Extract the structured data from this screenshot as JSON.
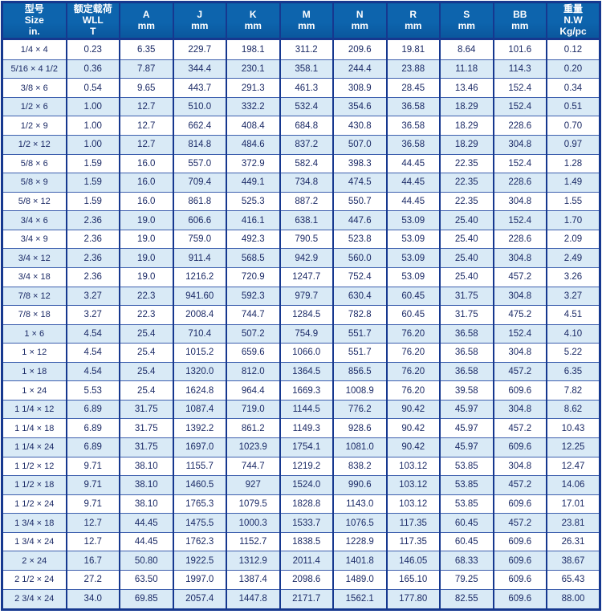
{
  "colors": {
    "header-bg": "#0d64ad",
    "header-bg-dark": "#0a569c",
    "header-text": "#ffffff",
    "row-bg": "#ffffff",
    "row-alt-bg": "#d9eaf6",
    "border-strong": "#16388f",
    "border-light": "#3d5fae",
    "cell-text": "#1b2a66",
    "page-bg": "#ffffff"
  },
  "chart_data": {
    "type": "table",
    "title": "Shackle / sling specification table",
    "columns": [
      "型号\nSize\nin.",
      "额定载荷\nWLL\nT",
      "A\nmm",
      "J\nmm",
      "K\nmm",
      "M\nmm",
      "N\nmm",
      "R\nmm",
      "S\nmm",
      "BB\nmm",
      "重量\nN.W\nKg/pc"
    ],
    "rows": [
      [
        "1/4 × 4",
        "0.23",
        "6.35",
        "229.7",
        "198.1",
        "311.2",
        "209.6",
        "19.81",
        "8.64",
        "101.6",
        "0.12"
      ],
      [
        "5/16 × 4 1/2",
        "0.36",
        "7.87",
        "344.4",
        "230.1",
        "358.1",
        "244.4",
        "23.88",
        "11.18",
        "114.3",
        "0.20"
      ],
      [
        "3/8 × 6",
        "0.54",
        "9.65",
        "443.7",
        "291.3",
        "461.3",
        "308.9",
        "28.45",
        "13.46",
        "152.4",
        "0.34"
      ],
      [
        "1/2 × 6",
        "1.00",
        "12.7",
        "510.0",
        "332.2",
        "532.4",
        "354.6",
        "36.58",
        "18.29",
        "152.4",
        "0.51"
      ],
      [
        "1/2 × 9",
        "1.00",
        "12.7",
        "662.4",
        "408.4",
        "684.8",
        "430.8",
        "36.58",
        "18.29",
        "228.6",
        "0.70"
      ],
      [
        "1/2 × 12",
        "1.00",
        "12.7",
        "814.8",
        "484.6",
        "837.2",
        "507.0",
        "36.58",
        "18.29",
        "304.8",
        "0.97"
      ],
      [
        "5/8 × 6",
        "1.59",
        "16.0",
        "557.0",
        "372.9",
        "582.4",
        "398.3",
        "44.45",
        "22.35",
        "152.4",
        "1.28"
      ],
      [
        "5/8 × 9",
        "1.59",
        "16.0",
        "709.4",
        "449.1",
        "734.8",
        "474.5",
        "44.45",
        "22.35",
        "228.6",
        "1.49"
      ],
      [
        "5/8 × 12",
        "1.59",
        "16.0",
        "861.8",
        "525.3",
        "887.2",
        "550.7",
        "44.45",
        "22.35",
        "304.8",
        "1.55"
      ],
      [
        "3/4 × 6",
        "2.36",
        "19.0",
        "606.6",
        "416.1",
        "638.1",
        "447.6",
        "53.09",
        "25.40",
        "152.4",
        "1.70"
      ],
      [
        "3/4 × 9",
        "2.36",
        "19.0",
        "759.0",
        "492.3",
        "790.5",
        "523.8",
        "53.09",
        "25.40",
        "228.6",
        "2.09"
      ],
      [
        "3/4 × 12",
        "2.36",
        "19.0",
        "911.4",
        "568.5",
        "942.9",
        "560.0",
        "53.09",
        "25.40",
        "304.8",
        "2.49"
      ],
      [
        "3/4 × 18",
        "2.36",
        "19.0",
        "1216.2",
        "720.9",
        "1247.7",
        "752.4",
        "53.09",
        "25.40",
        "457.2",
        "3.26"
      ],
      [
        "7/8 × 12",
        "3.27",
        "22.3",
        "941.60",
        "592.3",
        "979.7",
        "630.4",
        "60.45",
        "31.75",
        "304.8",
        "3.27"
      ],
      [
        "7/8 × 18",
        "3.27",
        "22.3",
        "2008.4",
        "744.7",
        "1284.5",
        "782.8",
        "60.45",
        "31.75",
        "475.2",
        "4.51"
      ],
      [
        "1 × 6",
        "4.54",
        "25.4",
        "710.4",
        "507.2",
        "754.9",
        "551.7",
        "76.20",
        "36.58",
        "152.4",
        "4.10"
      ],
      [
        "1 × 12",
        "4.54",
        "25.4",
        "1015.2",
        "659.6",
        "1066.0",
        "551.7",
        "76.20",
        "36.58",
        "304.8",
        "5.22"
      ],
      [
        "1 × 18",
        "4.54",
        "25.4",
        "1320.0",
        "812.0",
        "1364.5",
        "856.5",
        "76.20",
        "36.58",
        "457.2",
        "6.35"
      ],
      [
        "1 × 24",
        "5.53",
        "25.4",
        "1624.8",
        "964.4",
        "1669.3",
        "1008.9",
        "76.20",
        "39.58",
        "609.6",
        "7.82"
      ],
      [
        "1 1/4 × 12",
        "6.89",
        "31.75",
        "1087.4",
        "719.0",
        "1144.5",
        "776.2",
        "90.42",
        "45.97",
        "304.8",
        "8.62"
      ],
      [
        "1 1/4 × 18",
        "6.89",
        "31.75",
        "1392.2",
        "861.2",
        "1149.3",
        "928.6",
        "90.42",
        "45.97",
        "457.2",
        "10.43"
      ],
      [
        "1 1/4 × 24",
        "6.89",
        "31.75",
        "1697.0",
        "1023.9",
        "1754.1",
        "1081.0",
        "90.42",
        "45.97",
        "609.6",
        "12.25"
      ],
      [
        "1 1/2 × 12",
        "9.71",
        "38.10",
        "1155.7",
        "744.7",
        "1219.2",
        "838.2",
        "103.12",
        "53.85",
        "304.8",
        "12.47"
      ],
      [
        "1 1/2 × 18",
        "9.71",
        "38.10",
        "1460.5",
        "927",
        "1524.0",
        "990.6",
        "103.12",
        "53.85",
        "457.2",
        "14.06"
      ],
      [
        "1 1/2 × 24",
        "9.71",
        "38.10",
        "1765.3",
        "1079.5",
        "1828.8",
        "1143.0",
        "103.12",
        "53.85",
        "609.6",
        "17.01"
      ],
      [
        "1 3/4 × 18",
        "12.7",
        "44.45",
        "1475.5",
        "1000.3",
        "1533.7",
        "1076.5",
        "117.35",
        "60.45",
        "457.2",
        "23.81"
      ],
      [
        "1 3/4 × 24",
        "12.7",
        "44.45",
        "1762.3",
        "1152.7",
        "1838.5",
        "1228.9",
        "117.35",
        "60.45",
        "609.6",
        "26.31"
      ],
      [
        "2 × 24",
        "16.7",
        "50.80",
        "1922.5",
        "1312.9",
        "2011.4",
        "1401.8",
        "146.05",
        "68.33",
        "609.6",
        "38.67"
      ],
      [
        "2 1/2 × 24",
        "27.2",
        "63.50",
        "1997.0",
        "1387.4",
        "2098.6",
        "1489.0",
        "165.10",
        "79.25",
        "609.6",
        "65.43"
      ],
      [
        "2 3/4 × 24",
        "34.0",
        "69.85",
        "2057.4",
        "1447.8",
        "2171.7",
        "1562.1",
        "177.80",
        "82.55",
        "609.6",
        "88.00"
      ]
    ]
  }
}
